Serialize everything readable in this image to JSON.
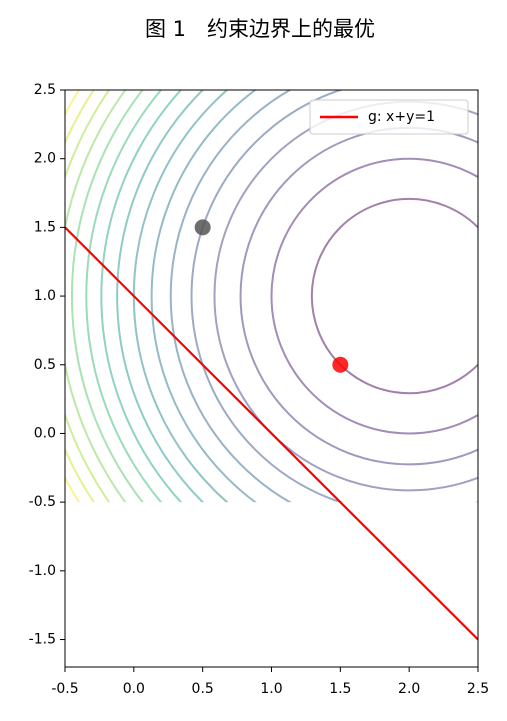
{
  "chart_data": {
    "type": "contour",
    "title": "图 1　约束边界上的最优",
    "xlim": [
      -0.5,
      2.5
    ],
    "ylim": [
      -1.7,
      2.5
    ],
    "xticks": [
      -0.5,
      {
        "value": 0,
        "label": "0.0"
      },
      0.5,
      {
        "value": 1,
        "label": "1.0"
      },
      1.5,
      {
        "value": 2,
        "label": "2.0"
      },
      2.5
    ],
    "yticks": [
      -1.5,
      {
        "value": -1,
        "label": "-1.0"
      },
      -0.5,
      {
        "value": 0,
        "label": "0.0"
      },
      0.5,
      {
        "value": 1,
        "label": "1.0"
      },
      1.5,
      {
        "value": 2,
        "label": "2.0"
      },
      2.5
    ],
    "contour": {
      "center": [
        2,
        1
      ],
      "xrange": [
        -0.5,
        2.5
      ],
      "yrange": [
        -0.5,
        2.5
      ],
      "levels": [
        0.5,
        1,
        1.5,
        2,
        2.5,
        3,
        3.5,
        4,
        4.5,
        5,
        5.5,
        6,
        6.5,
        7,
        7.5,
        8
      ],
      "colors": [
        "#440154",
        "#481a6c",
        "#472f7d",
        "#414487",
        "#39568c",
        "#31688e",
        "#2a788e",
        "#23888e",
        "#1f988b",
        "#22a884",
        "#35b779",
        "#54c568",
        "#7ad151",
        "#a5db36",
        "#d2e21b",
        "#fde725"
      ],
      "opacity": 0.5
    },
    "series": [
      {
        "name": "g: x+y=1",
        "color": "#ff0000",
        "x": [
          -0.5,
          2.5
        ],
        "values": [
          1.5,
          -1.5
        ]
      }
    ],
    "points": [
      {
        "x": 0.5,
        "y": 1.5,
        "color": "#555555"
      },
      {
        "x": 1.5,
        "y": 0.5,
        "color": "#ff0000"
      }
    ],
    "legend": "upper right"
  }
}
